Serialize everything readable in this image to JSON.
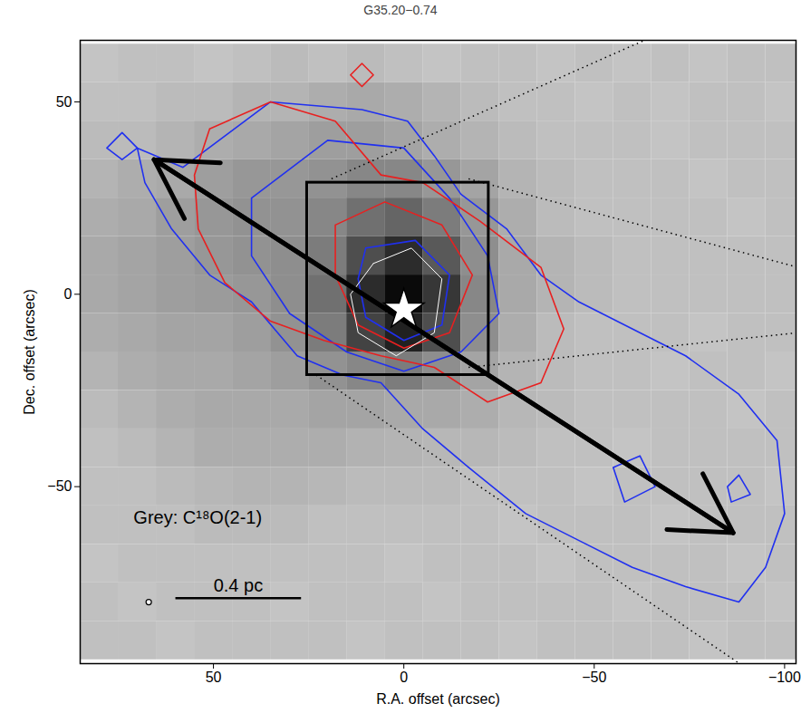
{
  "chart_data": {
    "type": "contour",
    "title": "G35.20−0.74",
    "x_label": "R.A. offset (arcsec)",
    "y_label": "Dec. offset (arcsec)",
    "xlim": [
      85,
      -103
    ],
    "ylim": [
      -96,
      66
    ],
    "xticks": [
      50,
      0,
      -50,
      -100
    ],
    "yticks": [
      50,
      0,
      -50
    ],
    "image": {
      "x": [
        80,
        70,
        60,
        50,
        40,
        30,
        20,
        10,
        0,
        -10,
        -20,
        -30,
        -40,
        -50,
        -60,
        -70,
        -80,
        -90,
        -100
      ],
      "y": [
        60,
        50,
        40,
        30,
        20,
        10,
        0,
        -10,
        -20,
        -30,
        -40,
        -50,
        -60,
        -70,
        -80,
        -90
      ],
      "value_range": [
        0,
        1
      ],
      "values": [
        [
          0.18,
          0.2,
          0.2,
          0.18,
          0.2,
          0.22,
          0.2,
          0.22,
          0.2,
          0.18,
          0.2,
          0.2,
          0.18,
          0.2,
          0.18,
          0.2,
          0.18,
          0.2,
          0.2
        ],
        [
          0.2,
          0.2,
          0.22,
          0.22,
          0.25,
          0.25,
          0.28,
          0.3,
          0.28,
          0.25,
          0.22,
          0.2,
          0.2,
          0.18,
          0.2,
          0.18,
          0.2,
          0.2,
          0.18
        ],
        [
          0.22,
          0.22,
          0.25,
          0.28,
          0.3,
          0.32,
          0.35,
          0.35,
          0.32,
          0.28,
          0.25,
          0.22,
          0.2,
          0.2,
          0.2,
          0.18,
          0.2,
          0.2,
          0.2
        ],
        [
          0.25,
          0.28,
          0.3,
          0.35,
          0.38,
          0.38,
          0.4,
          0.45,
          0.45,
          0.38,
          0.32,
          0.25,
          0.22,
          0.2,
          0.2,
          0.2,
          0.18,
          0.2,
          0.2
        ],
        [
          0.28,
          0.3,
          0.35,
          0.38,
          0.4,
          0.4,
          0.45,
          0.55,
          0.6,
          0.5,
          0.38,
          0.28,
          0.22,
          0.2,
          0.2,
          0.2,
          0.2,
          0.18,
          0.2
        ],
        [
          0.3,
          0.32,
          0.35,
          0.38,
          0.4,
          0.42,
          0.5,
          0.7,
          0.85,
          0.65,
          0.42,
          0.3,
          0.25,
          0.22,
          0.2,
          0.2,
          0.2,
          0.2,
          0.2
        ],
        [
          0.3,
          0.32,
          0.35,
          0.36,
          0.38,
          0.42,
          0.55,
          0.85,
          1.0,
          0.8,
          0.45,
          0.3,
          0.25,
          0.22,
          0.2,
          0.2,
          0.2,
          0.2,
          0.2
        ],
        [
          0.28,
          0.3,
          0.32,
          0.32,
          0.35,
          0.4,
          0.5,
          0.75,
          0.9,
          0.7,
          0.42,
          0.28,
          0.22,
          0.2,
          0.2,
          0.2,
          0.18,
          0.2,
          0.2
        ],
        [
          0.25,
          0.28,
          0.3,
          0.3,
          0.32,
          0.35,
          0.4,
          0.45,
          0.5,
          0.42,
          0.32,
          0.25,
          0.22,
          0.2,
          0.2,
          0.18,
          0.2,
          0.2,
          0.18
        ],
        [
          0.22,
          0.25,
          0.28,
          0.3,
          0.3,
          0.3,
          0.32,
          0.32,
          0.3,
          0.3,
          0.28,
          0.24,
          0.22,
          0.2,
          0.2,
          0.2,
          0.2,
          0.18,
          0.2
        ],
        [
          0.2,
          0.22,
          0.25,
          0.28,
          0.28,
          0.28,
          0.28,
          0.26,
          0.25,
          0.24,
          0.24,
          0.22,
          0.2,
          0.2,
          0.18,
          0.2,
          0.2,
          0.2,
          0.2
        ],
        [
          0.2,
          0.2,
          0.22,
          0.24,
          0.25,
          0.25,
          0.24,
          0.22,
          0.22,
          0.22,
          0.2,
          0.2,
          0.2,
          0.18,
          0.2,
          0.2,
          0.2,
          0.2,
          0.18
        ],
        [
          0.2,
          0.2,
          0.2,
          0.22,
          0.22,
          0.22,
          0.2,
          0.2,
          0.2,
          0.2,
          0.2,
          0.18,
          0.2,
          0.2,
          0.2,
          0.18,
          0.2,
          0.2,
          0.2
        ],
        [
          0.18,
          0.2,
          0.2,
          0.2,
          0.2,
          0.2,
          0.2,
          0.2,
          0.18,
          0.2,
          0.2,
          0.2,
          0.18,
          0.2,
          0.2,
          0.2,
          0.2,
          0.18,
          0.2
        ],
        [
          0.2,
          0.18,
          0.2,
          0.2,
          0.2,
          0.18,
          0.2,
          0.2,
          0.2,
          0.18,
          0.2,
          0.2,
          0.2,
          0.2,
          0.18,
          0.2,
          0.2,
          0.2,
          0.18
        ],
        [
          0.2,
          0.2,
          0.18,
          0.2,
          0.2,
          0.2,
          0.2,
          0.18,
          0.2,
          0.2,
          0.2,
          0.18,
          0.2,
          0.2,
          0.2,
          0.2,
          0.18,
          0.2,
          0.2
        ]
      ]
    },
    "contours": [
      {
        "color": "#2030f0",
        "paths": [
          [
            [
              70,
              38
            ],
            [
              58,
              33
            ],
            [
              35,
              50
            ],
            [
              11,
              48
            ],
            [
              -1,
              45
            ],
            [
              -8,
              36
            ],
            [
              -15,
              26
            ],
            [
              -27,
              17
            ],
            [
              -36,
              5
            ],
            [
              -46,
              -2
            ],
            [
              -60,
              -9
            ],
            [
              -74,
              -16
            ],
            [
              -88,
              -26
            ],
            [
              -98,
              -38
            ],
            [
              -100,
              -57
            ],
            [
              -95,
              -71
            ],
            [
              -88,
              -80
            ],
            [
              -74,
              -76
            ],
            [
              -60,
              -71
            ],
            [
              -46,
              -64
            ],
            [
              -32,
              -57
            ],
            [
              -17,
              -45
            ],
            [
              -5,
              -35
            ],
            [
              6,
              -23
            ],
            [
              16,
              -21
            ],
            [
              28,
              -16
            ],
            [
              40,
              -2
            ],
            [
              51,
              5
            ],
            [
              61,
              17
            ],
            [
              68,
              29
            ]
          ],
          [
            [
              40,
              25
            ],
            [
              20,
              40
            ],
            [
              0,
              38
            ],
            [
              -12,
              25
            ],
            [
              -22,
              10
            ],
            [
              -25,
              -5
            ],
            [
              -15,
              -15
            ],
            [
              0,
              -20
            ],
            [
              15,
              -15
            ],
            [
              30,
              -5
            ],
            [
              40,
              10
            ]
          ],
          [
            [
              10,
              12
            ],
            [
              -3,
              14
            ],
            [
              -12,
              5
            ],
            [
              -10,
              -8
            ],
            [
              0,
              -12
            ],
            [
              10,
              -6
            ],
            [
              12,
              4
            ]
          ],
          [
            [
              -55,
              -45
            ],
            [
              -62,
              -42
            ],
            [
              -66,
              -50
            ],
            [
              -58,
              -54
            ]
          ],
          [
            [
              -85,
              -50
            ],
            [
              -88,
              -47
            ],
            [
              -91,
              -52
            ],
            [
              -86,
              -54
            ]
          ],
          [
            [
              78,
              38
            ],
            [
              74,
              42
            ],
            [
              70,
              38
            ],
            [
              74,
              35
            ]
          ]
        ]
      },
      {
        "color": "#e82020",
        "paths": [
          [
            [
              51,
              43
            ],
            [
              35,
              50
            ],
            [
              18,
              45
            ],
            [
              6,
              31
            ],
            [
              -5,
              29
            ],
            [
              -20,
              19
            ],
            [
              -36,
              7
            ],
            [
              -42,
              -9
            ],
            [
              -36,
              -23
            ],
            [
              -22,
              -28
            ],
            [
              -8,
              -19
            ],
            [
              6,
              -16
            ],
            [
              21,
              -12
            ],
            [
              35,
              -7
            ],
            [
              47,
              3
            ],
            [
              54,
              17
            ],
            [
              55,
              31
            ]
          ],
          [
            [
              18,
              18
            ],
            [
              5,
              24
            ],
            [
              -10,
              18
            ],
            [
              -18,
              5
            ],
            [
              -12,
              -10
            ],
            [
              0,
              -14
            ],
            [
              12,
              -8
            ],
            [
              18,
              5
            ]
          ],
          [
            [
              14,
              57
            ],
            [
              11,
              60
            ],
            [
              8,
              57
            ],
            [
              11,
              54
            ]
          ]
        ]
      },
      {
        "color": "#ffffff",
        "paths": [
          [
            [
              8,
              8
            ],
            [
              -2,
              12
            ],
            [
              -10,
              4
            ],
            [
              -8,
              -10
            ],
            [
              2,
              -16
            ],
            [
              12,
              -10
            ],
            [
              14,
              0
            ]
          ]
        ]
      }
    ],
    "star": [
      0,
      -4
    ],
    "arrow": {
      "from": [
        65.6,
        35
      ],
      "to": [
        -86.5,
        -62
      ]
    },
    "box": {
      "x": [
        25.4,
        -22.3
      ],
      "y": [
        -21,
        29
      ]
    },
    "dotted_lines": [
      [
        [
          19,
          30
        ],
        [
          -86,
          76
        ]
      ],
      [
        [
          -17,
          30
        ],
        [
          -103.5,
          7
        ]
      ],
      [
        [
          -17,
          -19
        ],
        [
          -103.5,
          -10
        ]
      ],
      [
        [
          23,
          -21
        ],
        [
          -103,
          -106
        ]
      ]
    ],
    "beam": {
      "x": 67,
      "y": -80,
      "radius": 8.8
    },
    "scale_bar": {
      "x": [
        60,
        27
      ],
      "y": -79,
      "label": "0.4 pc"
    },
    "annotations": [
      {
        "text": "Grey: C¹⁸O(2-1)",
        "x": 71,
        "y": -58
      }
    ]
  }
}
